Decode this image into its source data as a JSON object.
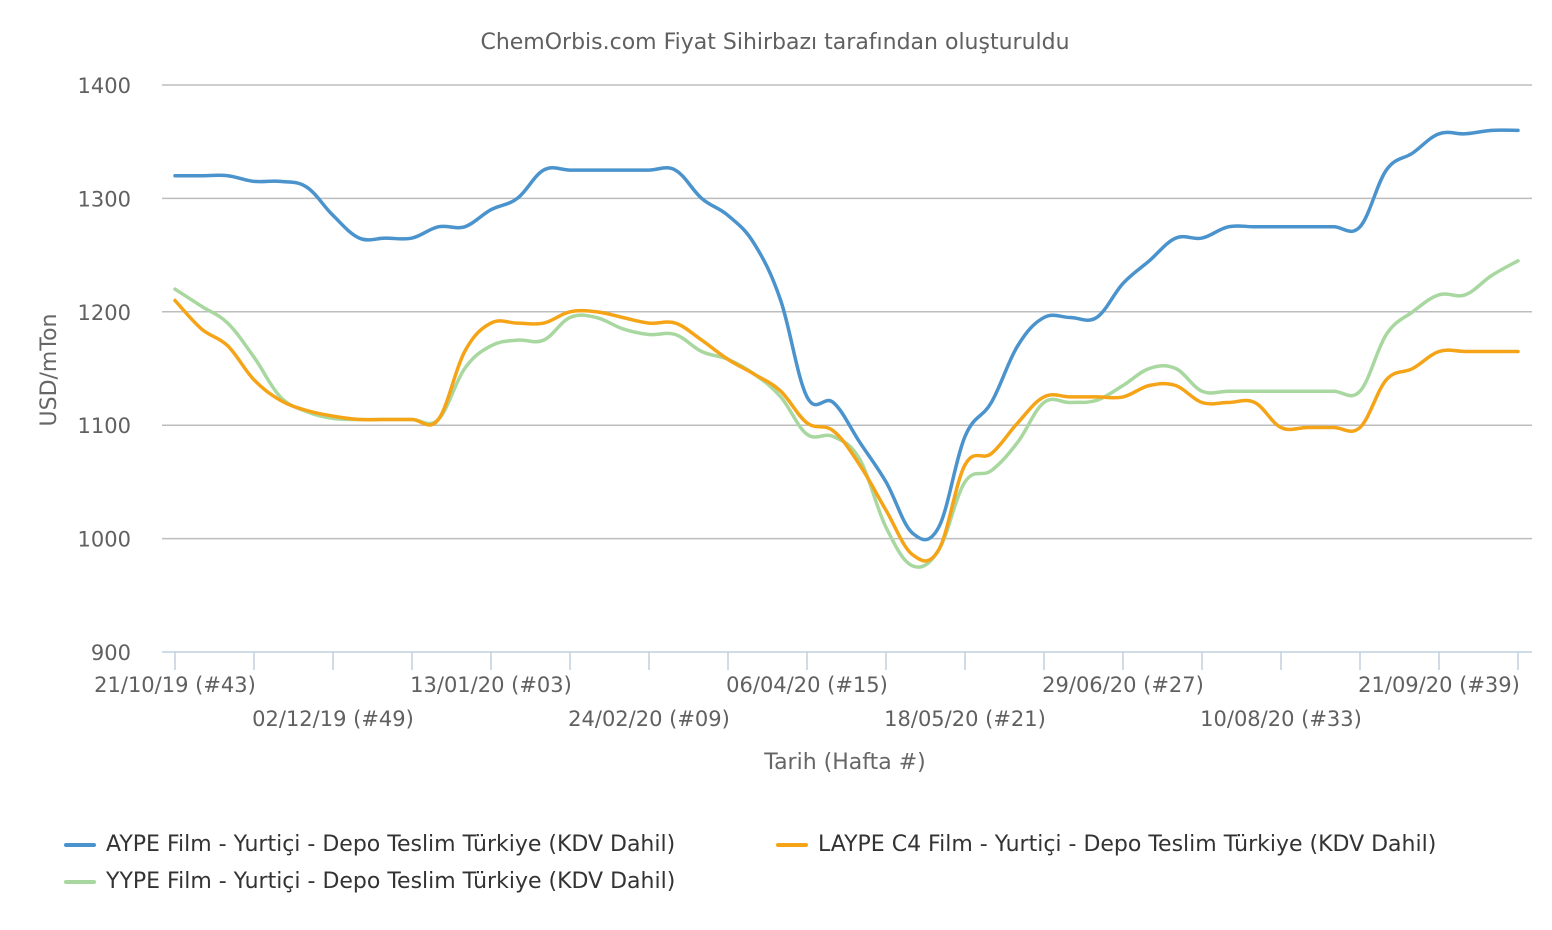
{
  "chart_data": {
    "type": "line",
    "subtitle": "ChemOrbis.com Fiyat Sihirbazı tarafından oluşturuldu",
    "xlabel": "Tarih (Hafta #)",
    "ylabel": "USD/mTon",
    "ylim": [
      900,
      1400
    ],
    "y_ticks": [
      900,
      1000,
      1100,
      1200,
      1300,
      1400
    ],
    "grid": true,
    "legend_position": "bottom",
    "x_tick_labels": [
      {
        "week_index": 0,
        "label": "21/10/19 (#43)",
        "row": 1
      },
      {
        "week_index": 6,
        "label": "02/12/19 (#49)",
        "row": 2
      },
      {
        "week_index": 12,
        "label": "13/01/20 (#03)",
        "row": 1
      },
      {
        "week_index": 18,
        "label": "24/02/20 (#09)",
        "row": 2
      },
      {
        "week_index": 24,
        "label": "06/04/20 (#15)",
        "row": 1
      },
      {
        "week_index": 30,
        "label": "18/05/20 (#21)",
        "row": 2
      },
      {
        "week_index": 36,
        "label": "29/06/20 (#27)",
        "row": 1
      },
      {
        "week_index": 42,
        "label": "10/08/20 (#33)",
        "row": 2
      },
      {
        "week_index": 48,
        "label": "21/09/20 (#39)",
        "row": 1
      }
    ],
    "minor_ticks": [
      0,
      3,
      6,
      9,
      12,
      15,
      18,
      21,
      24,
      27,
      30,
      33,
      36,
      39,
      42,
      45,
      48,
      51
    ],
    "series": [
      {
        "name": "AYPE Film - Yurtiçi  - Depo Teslim Türkiye  (KDV Dahil)",
        "color": "#4a93cc",
        "x": [
          0,
          1,
          2,
          3,
          4,
          5,
          6,
          7,
          8,
          9,
          10,
          11,
          12,
          13,
          14,
          15,
          16,
          17,
          18,
          19,
          20,
          21,
          22,
          23,
          24,
          25,
          26,
          27,
          28,
          29,
          30,
          31,
          32,
          33,
          34,
          35,
          36,
          37,
          38,
          39,
          40,
          41,
          42,
          43,
          44,
          45,
          46,
          47,
          48,
          49,
          50,
          51
        ],
        "values": [
          1320,
          1320,
          1320,
          1315,
          1315,
          1310,
          1285,
          1265,
          1265,
          1265,
          1275,
          1275,
          1290,
          1300,
          1325,
          1325,
          1325,
          1325,
          1325,
          1325,
          1300,
          1285,
          1260,
          1210,
          1125,
          1120,
          1085,
          1050,
          1005,
          1010,
          1090,
          1120,
          1170,
          1195,
          1195,
          1195,
          1225,
          1245,
          1265,
          1265,
          1275,
          1275,
          1275,
          1275,
          1275,
          1275,
          1325,
          1340,
          1357,
          1357,
          1360,
          1360
        ]
      },
      {
        "name": "LAYPE C4 Film - Yurtiçi  - Depo Teslim Türkiye  (KDV Dahil)",
        "color": "#f5a418",
        "x": [
          0,
          1,
          2,
          3,
          4,
          5,
          6,
          7,
          8,
          9,
          10,
          11,
          12,
          13,
          14,
          15,
          16,
          17,
          18,
          19,
          20,
          21,
          22,
          23,
          24,
          25,
          26,
          27,
          28,
          29,
          30,
          31,
          32,
          33,
          34,
          35,
          36,
          37,
          38,
          39,
          40,
          41,
          42,
          43,
          44,
          45,
          46,
          47,
          48,
          49,
          50,
          51
        ],
        "values": [
          1210,
          1185,
          1170,
          1140,
          1122,
          1113,
          1108,
          1105,
          1105,
          1105,
          1105,
          1165,
          1190,
          1190,
          1190,
          1200,
          1200,
          1195,
          1190,
          1190,
          1175,
          1158,
          1145,
          1130,
          1102,
          1095,
          1065,
          1025,
          986,
          990,
          1065,
          1075,
          1102,
          1125,
          1125,
          1125,
          1125,
          1135,
          1135,
          1120,
          1120,
          1120,
          1098,
          1098,
          1098,
          1098,
          1140,
          1150,
          1165,
          1165,
          1165,
          1165
        ]
      },
      {
        "name": "YYPE Film - Yurtiçi  - Depo Teslim Türkiye  (KDV Dahil)",
        "color": "#a8d8a0",
        "x": [
          0,
          1,
          2,
          3,
          4,
          5,
          6,
          7,
          8,
          9,
          10,
          11,
          12,
          13,
          14,
          15,
          16,
          17,
          18,
          19,
          20,
          21,
          22,
          23,
          24,
          25,
          26,
          27,
          28,
          29,
          30,
          31,
          32,
          33,
          34,
          35,
          36,
          37,
          38,
          39,
          40,
          41,
          42,
          43,
          44,
          45,
          46,
          47,
          48,
          49,
          50,
          51
        ],
        "values": [
          1220,
          1205,
          1190,
          1160,
          1125,
          1112,
          1106,
          1105,
          1105,
          1105,
          1105,
          1150,
          1170,
          1175,
          1175,
          1195,
          1195,
          1185,
          1180,
          1180,
          1165,
          1158,
          1145,
          1125,
          1092,
          1090,
          1070,
          1010,
          976,
          990,
          1050,
          1060,
          1085,
          1120,
          1120,
          1122,
          1135,
          1150,
          1150,
          1130,
          1130,
          1130,
          1130,
          1130,
          1130,
          1130,
          1180,
          1200,
          1215,
          1215,
          1232,
          1245
        ]
      }
    ]
  }
}
